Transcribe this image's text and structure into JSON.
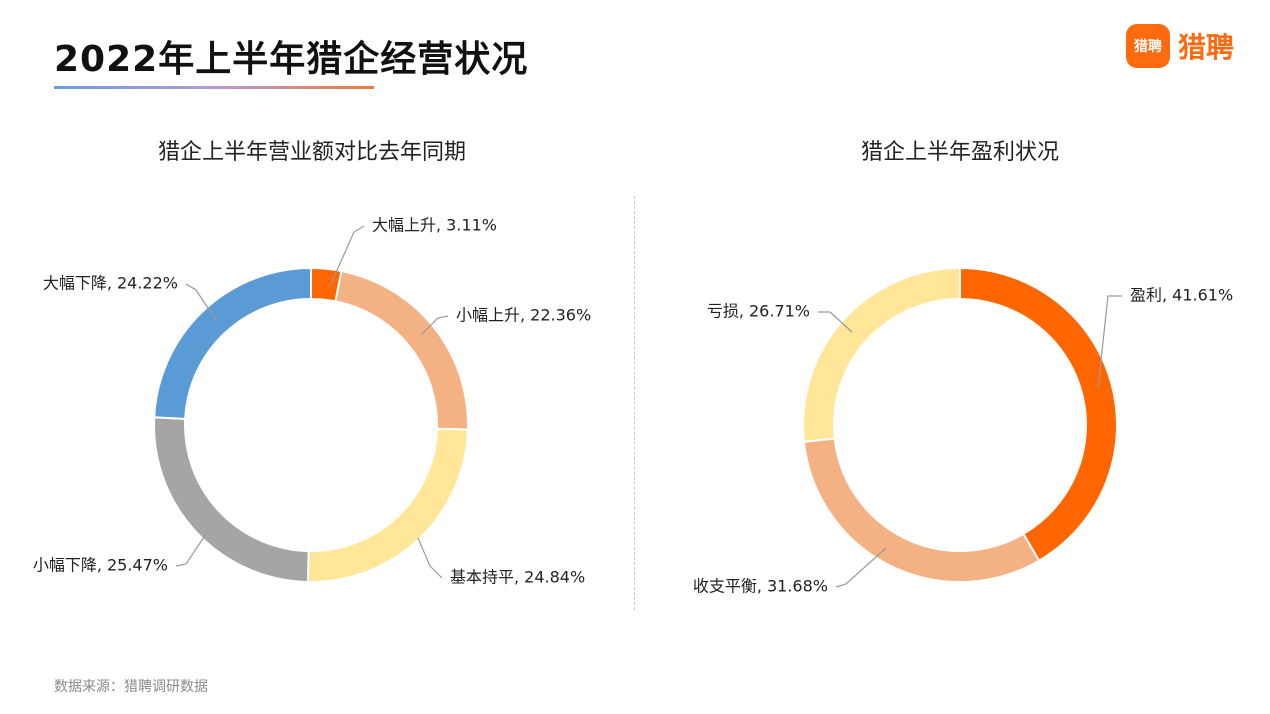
{
  "page": {
    "title": "2022年上半年猎企经营状况",
    "source": "数据来源：猎聘调研数据"
  },
  "logo": {
    "mark": "猎聘",
    "text": "猎聘",
    "color": "#ff6a0f"
  },
  "chart_data": [
    {
      "type": "pie",
      "donut": true,
      "title": "猎企上半年营业额对比去年同期",
      "unit": "%",
      "slices": [
        {
          "label": "大幅上升",
          "value": 3.11,
          "display": "大幅上升, 3.11%",
          "color": "#ff6600"
        },
        {
          "label": "小幅上升",
          "value": 22.36,
          "display": "小幅上升, 22.36%",
          "color": "#f4b183"
        },
        {
          "label": "基本持平",
          "value": 24.84,
          "display": "基本持平, 24.84%",
          "color": "#ffe699"
        },
        {
          "label": "小幅下降",
          "value": 25.47,
          "display": "小幅下降, 25.47%",
          "color": "#a5a5a5"
        },
        {
          "label": "大幅下降",
          "value": 24.22,
          "display": "大幅下降, 24.22%",
          "color": "#5b9bd5"
        }
      ]
    },
    {
      "type": "pie",
      "donut": true,
      "title": "猎企上半年盈利状况",
      "unit": "%",
      "slices": [
        {
          "label": "盈利",
          "value": 41.61,
          "display": "盈利, 41.61%",
          "color": "#ff6600"
        },
        {
          "label": "收支平衡",
          "value": 31.68,
          "display": "收支平衡, 31.68%",
          "color": "#f4b183"
        },
        {
          "label": "亏损",
          "value": 26.71,
          "display": "亏损, 26.71%",
          "color": "#ffe699"
        }
      ]
    }
  ]
}
